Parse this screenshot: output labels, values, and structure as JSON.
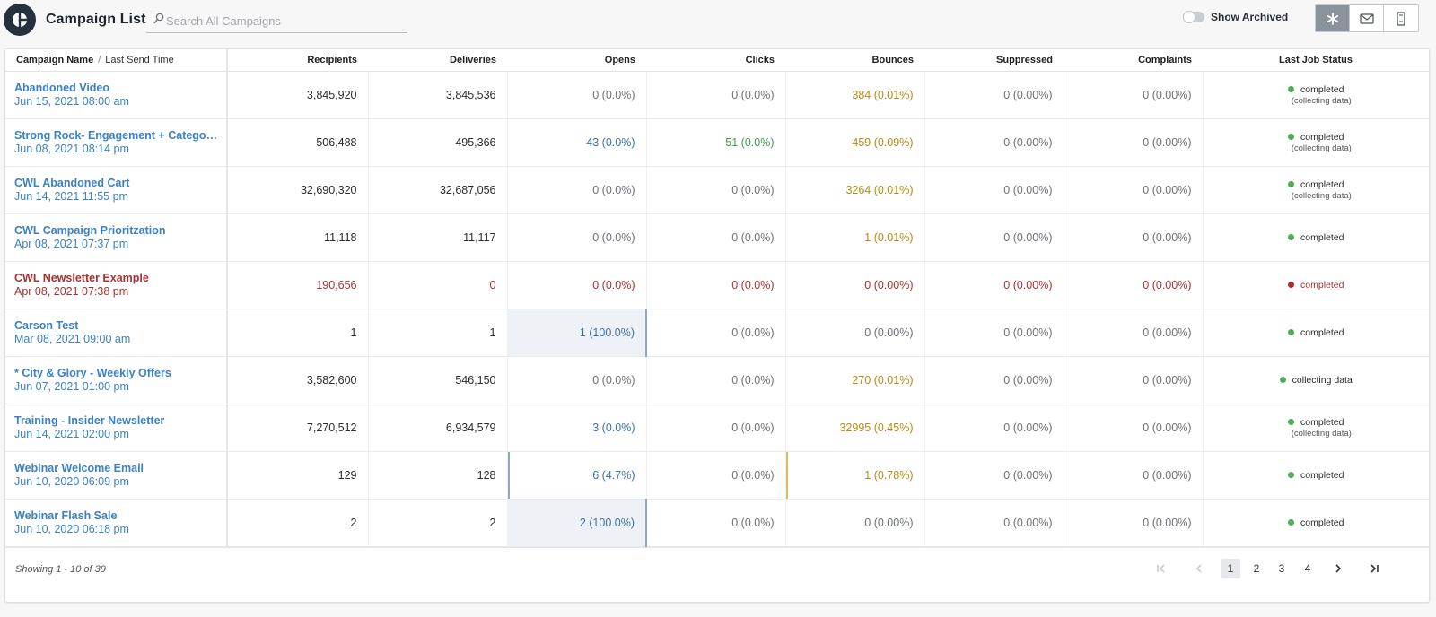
{
  "header": {
    "title": "Campaign List",
    "search_placeholder": "Search All Campaigns",
    "show_archived_label": "Show Archived",
    "show_archived_on": false,
    "view_buttons": [
      {
        "icon": "asterisk-icon",
        "active": true
      },
      {
        "icon": "mail-icon",
        "active": false
      },
      {
        "icon": "mobile-icon",
        "active": false
      }
    ]
  },
  "table": {
    "columns": {
      "name": "Campaign Name",
      "last_send": "Last Send Time",
      "recipients": "Recipients",
      "deliveries": "Deliveries",
      "opens": "Opens",
      "clicks": "Clicks",
      "bounces": "Bounces",
      "suppressed": "Suppressed",
      "complaints": "Complaints",
      "status": "Last Job Status"
    },
    "rows": [
      {
        "name": "Abandoned Video",
        "time": "Jun 15, 2021 08:00 am",
        "recipients": "3,845,920",
        "deliveries": "3,845,536",
        "opens": "0 (0.0%)",
        "clicks": "0 (0.0%)",
        "bounces": "384 (0.01%)",
        "suppressed": "0 (0.00%)",
        "complaints": "0 (0.00%)",
        "status": "completed",
        "status_sub": "(collecting data)"
      },
      {
        "name": "Strong Rock- Engagement + Category ...",
        "time": "Jun 08, 2021 08:14 pm",
        "recipients": "506,488",
        "deliveries": "495,366",
        "opens": "43 (0.0%)",
        "clicks": "51 (0.0%)",
        "bounces": "459 (0.09%)",
        "suppressed": "0 (0.00%)",
        "complaints": "0 (0.00%)",
        "status": "completed",
        "status_sub": "(collecting data)"
      },
      {
        "name": "CWL Abandoned Cart",
        "time": "Jun 14, 2021 11:55 pm",
        "recipients": "32,690,320",
        "deliveries": "32,687,056",
        "opens": "0 (0.0%)",
        "clicks": "0 (0.0%)",
        "bounces": "3264 (0.01%)",
        "suppressed": "0 (0.00%)",
        "complaints": "0 (0.00%)",
        "status": "completed",
        "status_sub": "(collecting data)"
      },
      {
        "name": "CWL Campaign Prioritzation",
        "time": "Apr 08, 2021 07:37 pm",
        "recipients": "11,118",
        "deliveries": "11,117",
        "opens": "0 (0.0%)",
        "clicks": "0 (0.0%)",
        "bounces": "1 (0.01%)",
        "suppressed": "0 (0.00%)",
        "complaints": "0 (0.00%)",
        "status": "completed",
        "status_sub": ""
      },
      {
        "name": "CWL Newsletter Example",
        "time": "Apr 08, 2021 07:38 pm",
        "recipients": "190,656",
        "deliveries": "0",
        "opens": "0 (0.0%)",
        "clicks": "0 (0.0%)",
        "bounces": "0 (0.00%)",
        "suppressed": "0 (0.00%)",
        "complaints": "0 (0.00%)",
        "status": "completed",
        "status_sub": ""
      },
      {
        "name": "Carson Test",
        "time": "Mar 08, 2021 09:00 am",
        "recipients": "1",
        "deliveries": "1",
        "opens": "1 (100.0%)",
        "clicks": "0 (0.0%)",
        "bounces": "0 (0.00%)",
        "suppressed": "0 (0.00%)",
        "complaints": "0 (0.00%)",
        "status": "completed",
        "status_sub": ""
      },
      {
        "name": "* City & Glory - Weekly Offers",
        "time": "Jun 07, 2021 01:00 pm",
        "recipients": "3,582,600",
        "deliveries": "546,150",
        "opens": "0 (0.0%)",
        "clicks": "0 (0.0%)",
        "bounces": "270 (0.01%)",
        "suppressed": "0 (0.00%)",
        "complaints": "0 (0.00%)",
        "status": "collecting data",
        "status_sub": ""
      },
      {
        "name": "Training - Insider Newsletter",
        "time": "Jun 14, 2021 02:00 pm",
        "recipients": "7,270,512",
        "deliveries": "6,934,579",
        "opens": "3 (0.0%)",
        "clicks": "0 (0.0%)",
        "bounces": "32995 (0.45%)",
        "suppressed": "0 (0.00%)",
        "complaints": "0 (0.00%)",
        "status": "completed",
        "status_sub": "(collecting data)"
      },
      {
        "name": "Webinar Welcome Email",
        "time": "Jun 10, 2020 06:09 pm",
        "recipients": "129",
        "deliveries": "128",
        "opens": "6 (4.7%)",
        "clicks": "0 (0.0%)",
        "bounces": "1 (0.78%)",
        "suppressed": "0 (0.00%)",
        "complaints": "0 (0.00%)",
        "status": "completed",
        "status_sub": ""
      },
      {
        "name": "Webinar Flash Sale",
        "time": "Jun 10, 2020 06:18 pm",
        "recipients": "2",
        "deliveries": "2",
        "opens": "2 (100.0%)",
        "clicks": "0 (0.0%)",
        "bounces": "0 (0.00%)",
        "suppressed": "0 (0.00%)",
        "complaints": "0 (0.00%)",
        "status": "completed",
        "status_sub": ""
      }
    ]
  },
  "footer": {
    "showing": "Showing 1 - 10 of 39",
    "pages": [
      "1",
      "2",
      "3",
      "4"
    ],
    "current_page": "1"
  },
  "colors": {
    "link": "#3b82c4",
    "error": "#a83232",
    "open_blue": "#3b73a8",
    "click_green": "#3f9a4f",
    "bounce_gold": "#b88a14",
    "status_green": "#4fad5b",
    "status_red": "#b02a2a"
  }
}
